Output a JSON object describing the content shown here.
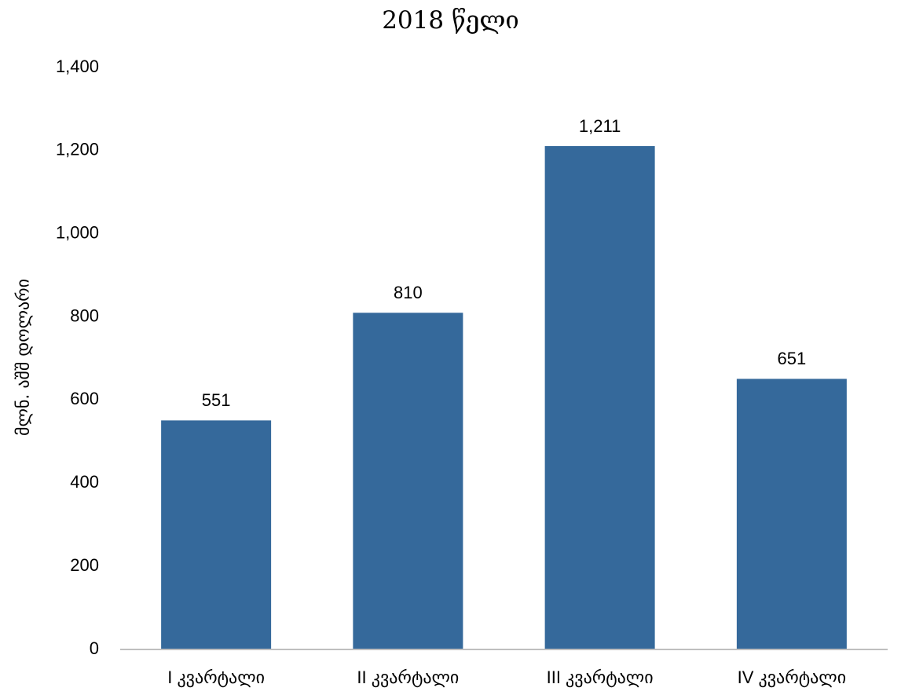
{
  "chart_data": {
    "type": "bar",
    "title": "2018 წელი",
    "ylabel": "მლნ. აშშ დოლარი",
    "xlabel": "",
    "categories": [
      "I კვარტალი",
      "II კვარტალი",
      "III კვარტალი",
      "IV კვარტალი"
    ],
    "values": [
      551,
      810,
      1211,
      651
    ],
    "value_labels": [
      "551",
      "810",
      "1,211",
      "651"
    ],
    "ylim": [
      0,
      1400
    ],
    "yticks": [
      0,
      200,
      400,
      600,
      800,
      1000,
      1200,
      1400
    ],
    "ytick_labels": [
      "0",
      "200",
      "400",
      "600",
      "800",
      "1,000",
      "1,200",
      "1,400"
    ],
    "grid": false,
    "legend": "none",
    "bar_color": "#35699B",
    "axis_color": "#BFBFBF"
  }
}
